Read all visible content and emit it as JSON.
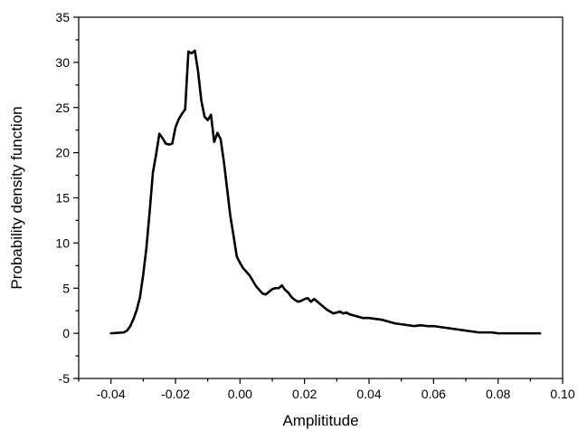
{
  "chart_data": {
    "type": "line",
    "title": "",
    "xlabel": "Amplititude",
    "ylabel": "Probability density function",
    "xlim": [
      -0.05,
      0.1
    ],
    "ylim": [
      -5,
      35
    ],
    "grid": false,
    "legend": "none",
    "line_color": "#000000",
    "x_ticks": [
      -0.04,
      -0.02,
      0.0,
      0.02,
      0.04,
      0.06,
      0.08,
      0.1
    ],
    "x_tick_labels": [
      "-0.04",
      "-0.02",
      "0.00",
      "0.02",
      "0.04",
      "0.06",
      "0.08",
      "0.10"
    ],
    "y_ticks": [
      -5,
      0,
      5,
      10,
      15,
      20,
      25,
      30,
      35
    ],
    "y_tick_labels": [
      "-5",
      "0",
      "5",
      "10",
      "15",
      "20",
      "25",
      "30",
      "35"
    ],
    "series": [
      {
        "x": [
          -0.04,
          -0.036,
          -0.035,
          -0.034,
          -0.033,
          -0.032,
          -0.031,
          -0.03,
          -0.029,
          -0.028,
          -0.027,
          -0.026,
          -0.025,
          -0.024,
          -0.023,
          -0.022,
          -0.021,
          -0.02,
          -0.019,
          -0.018,
          -0.017,
          -0.016,
          -0.015,
          -0.014,
          -0.013,
          -0.012,
          -0.011,
          -0.01,
          -0.009,
          -0.008,
          -0.007,
          -0.006,
          -0.005,
          -0.004,
          -0.003,
          -0.002,
          -0.001,
          0.0,
          0.001,
          0.002,
          0.003,
          0.004,
          0.005,
          0.006,
          0.007,
          0.008,
          0.009,
          0.01,
          0.011,
          0.012,
          0.013,
          0.014,
          0.015,
          0.016,
          0.017,
          0.018,
          0.019,
          0.02,
          0.021,
          0.022,
          0.023,
          0.024,
          0.025,
          0.026,
          0.027,
          0.028,
          0.029,
          0.03,
          0.031,
          0.032,
          0.033,
          0.034,
          0.035,
          0.036,
          0.037,
          0.038,
          0.04,
          0.042,
          0.044,
          0.046,
          0.048,
          0.05,
          0.052,
          0.054,
          0.056,
          0.058,
          0.06,
          0.062,
          0.064,
          0.066,
          0.068,
          0.07,
          0.072,
          0.074,
          0.076,
          0.078,
          0.08,
          0.082,
          0.084,
          0.086,
          0.088,
          0.09,
          0.093
        ],
        "y": [
          0.0,
          0.1,
          0.3,
          0.8,
          1.6,
          2.6,
          4.0,
          6.5,
          9.5,
          13.5,
          17.8,
          19.8,
          22.1,
          21.6,
          21.0,
          20.9,
          21.0,
          22.8,
          23.7,
          24.3,
          24.8,
          31.2,
          31.0,
          31.3,
          29.0,
          25.8,
          24.0,
          23.6,
          24.2,
          21.2,
          22.2,
          21.5,
          19.0,
          16.0,
          13.0,
          10.8,
          8.5,
          7.8,
          7.2,
          6.8,
          6.4,
          5.8,
          5.2,
          4.8,
          4.4,
          4.3,
          4.6,
          4.9,
          5.0,
          5.0,
          5.3,
          4.8,
          4.5,
          4.0,
          3.7,
          3.5,
          3.6,
          3.8,
          3.9,
          3.5,
          3.8,
          3.5,
          3.2,
          2.9,
          2.6,
          2.4,
          2.2,
          2.3,
          2.4,
          2.2,
          2.3,
          2.1,
          2.0,
          1.9,
          1.8,
          1.7,
          1.7,
          1.6,
          1.5,
          1.3,
          1.1,
          1.0,
          0.9,
          0.8,
          0.9,
          0.8,
          0.8,
          0.7,
          0.6,
          0.5,
          0.4,
          0.3,
          0.2,
          0.1,
          0.1,
          0.1,
          0.0,
          0.0,
          0.0,
          0.0,
          0.0,
          0.0,
          0.0
        ]
      }
    ]
  }
}
